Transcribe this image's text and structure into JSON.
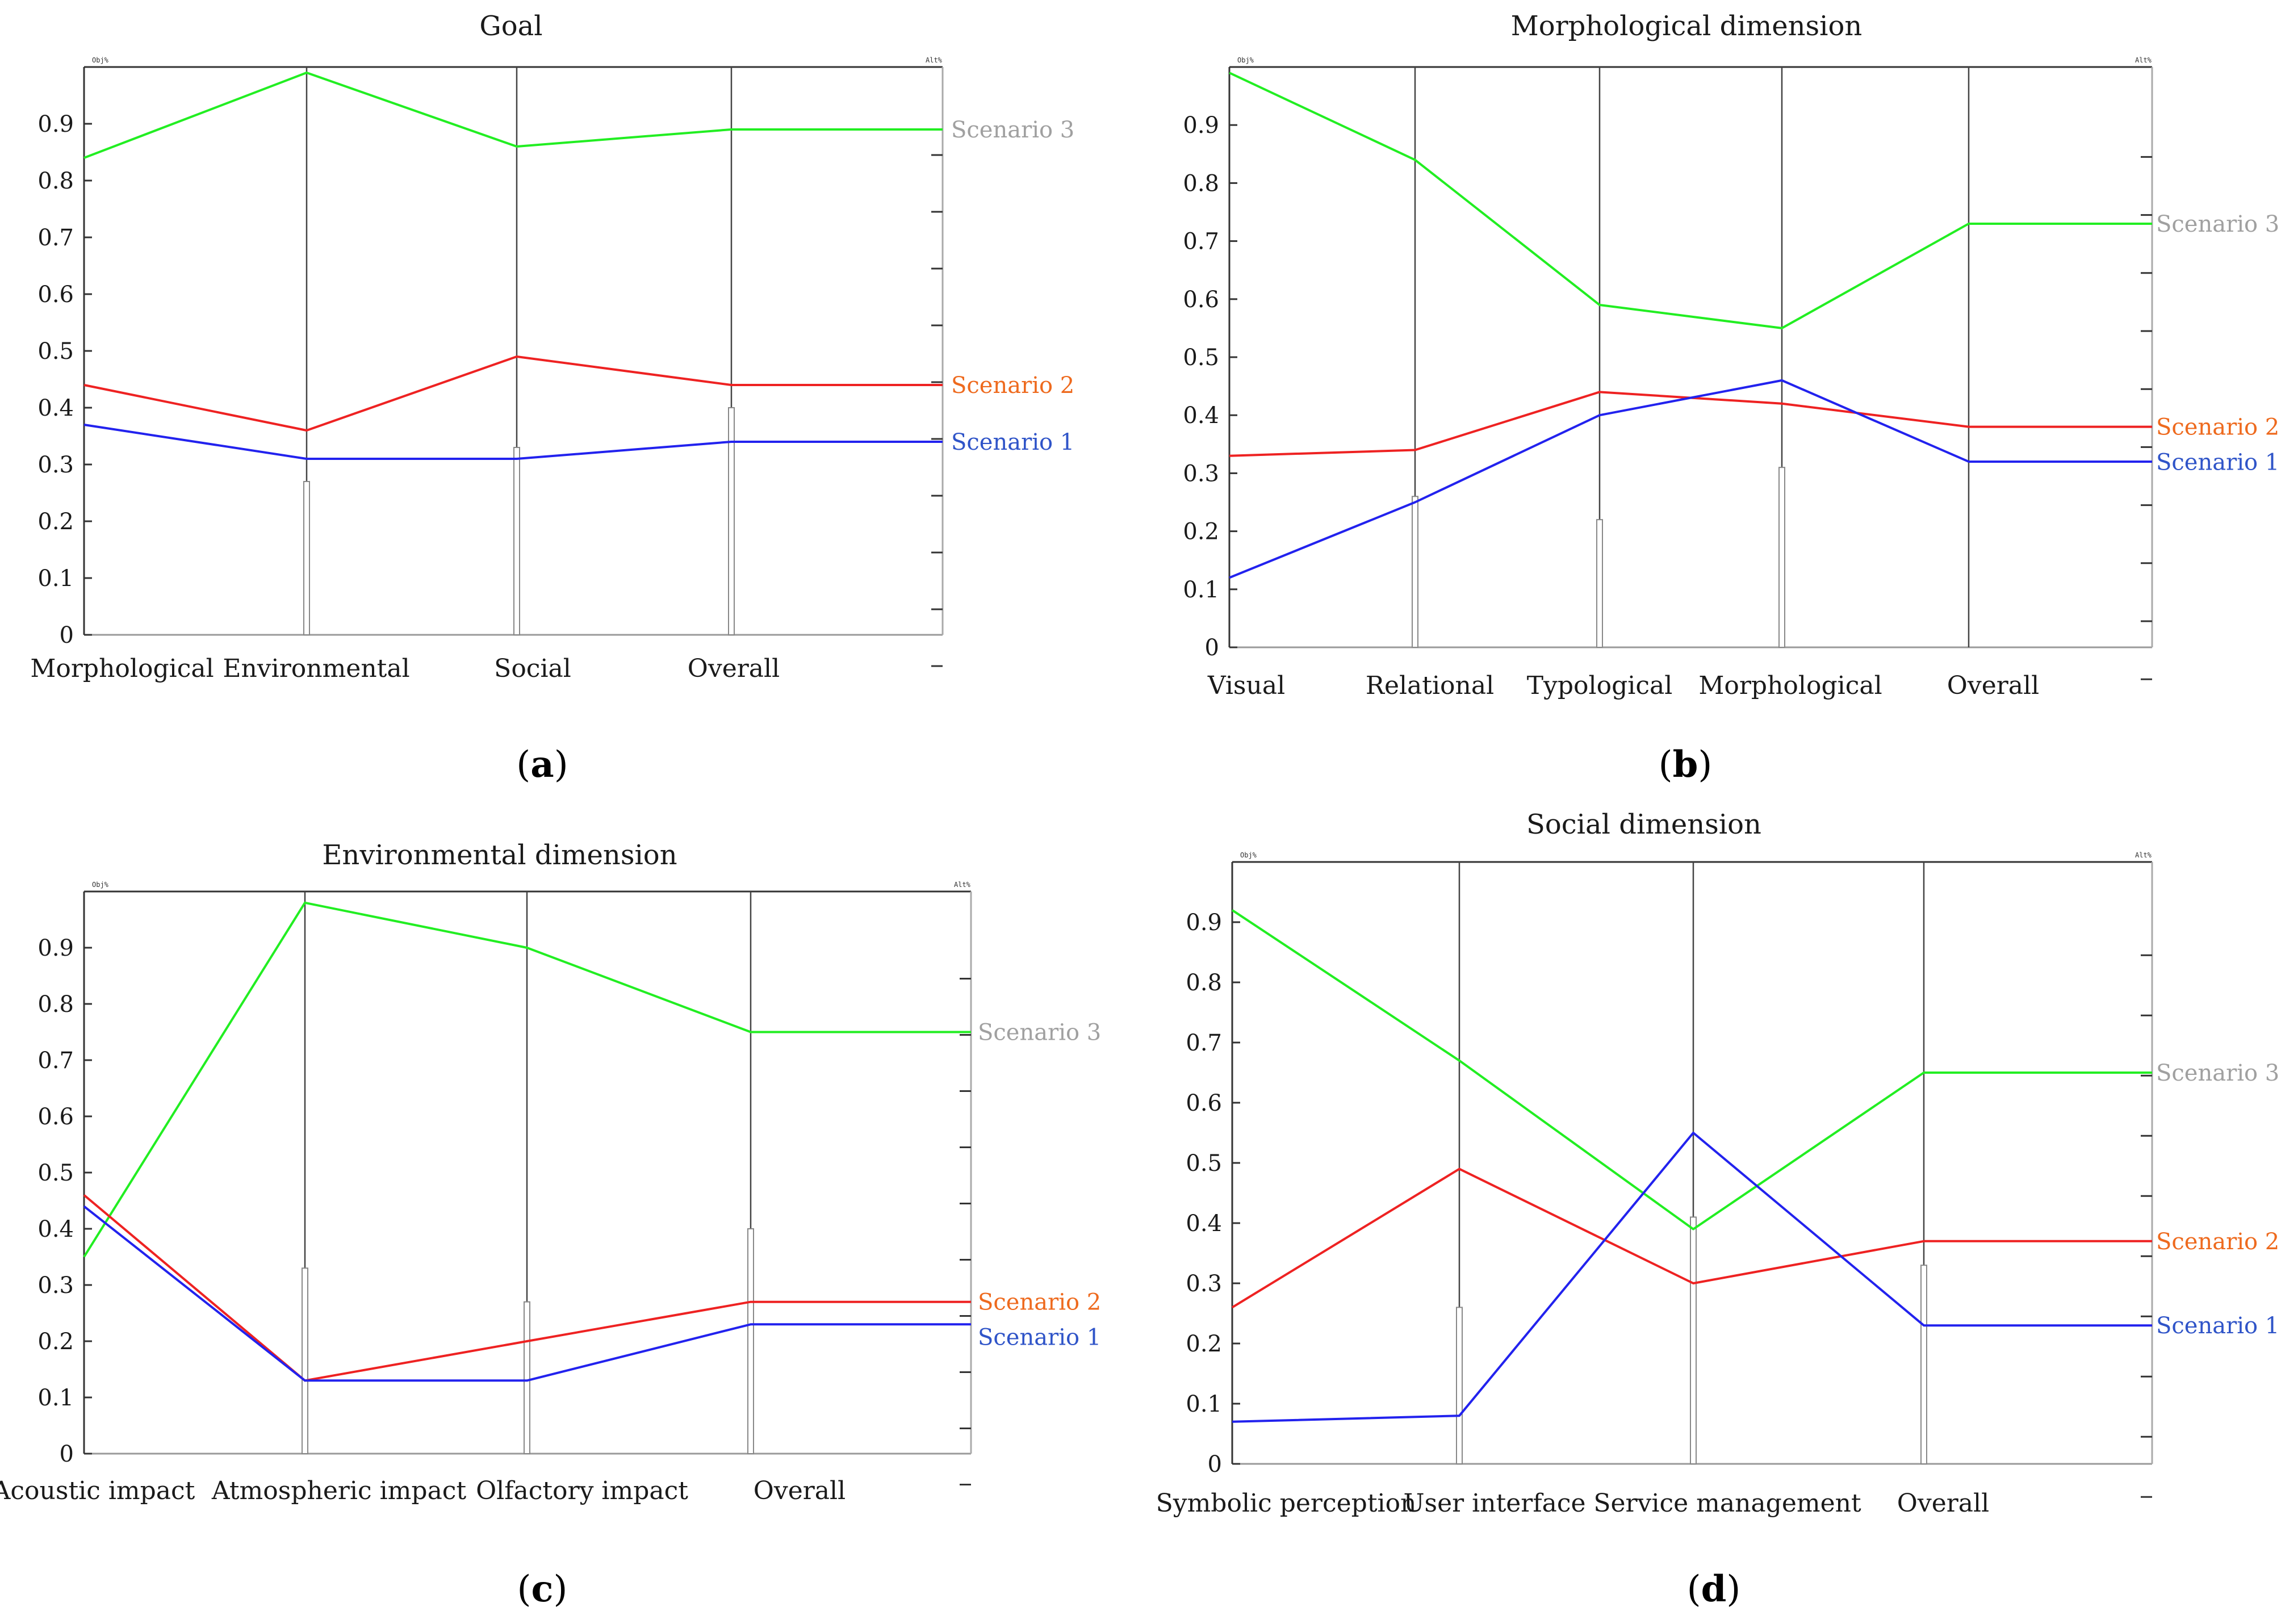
{
  "chart_data": [
    {
      "type": "line",
      "title": "Goal",
      "panel_label": "(a)",
      "corner_left": "Obj%",
      "corner_right": "Alt%",
      "categories": [
        "Morphological",
        "Environmental",
        "Social",
        "Overall"
      ],
      "ylim": [
        0,
        1
      ],
      "yticks": [
        "0",
        "0.1",
        "0.2",
        "0.3",
        "0.4",
        "0.5",
        "0.6",
        "0.7",
        "0.8",
        "0.9"
      ],
      "weights": [
        0.27,
        0.33,
        0.4
      ],
      "series": [
        {
          "name": "Scenario 3",
          "color": "#22ee22",
          "label_color": "#a0a0a0",
          "values": [
            0.84,
            0.99,
            0.86,
            0.89
          ]
        },
        {
          "name": "Scenario 2",
          "color": "#ee2222",
          "label_color": "#ee6a1e",
          "values": [
            0.44,
            0.36,
            0.49,
            0.44
          ]
        },
        {
          "name": "Scenario 1",
          "color": "#2222ee",
          "label_color": "#2f54c8",
          "values": [
            0.37,
            0.31,
            0.31,
            0.34
          ]
        }
      ]
    },
    {
      "type": "line",
      "title": "Morphological dimension",
      "panel_label": "(b)",
      "corner_left": "Obj%",
      "corner_right": "Alt%",
      "categories": [
        "Visual",
        "Relational",
        "Typological",
        "Morphological",
        "Overall"
      ],
      "ylim": [
        0,
        1
      ],
      "yticks": [
        "0",
        "0.1",
        "0.2",
        "0.3",
        "0.4",
        "0.5",
        "0.6",
        "0.7",
        "0.8",
        "0.9"
      ],
      "weights": [
        0.26,
        0.22,
        0.31
      ],
      "series": [
        {
          "name": "Scenario 3",
          "color": "#22ee22",
          "label_color": "#a0a0a0",
          "values": [
            0.99,
            0.84,
            0.59,
            0.55,
            0.73
          ]
        },
        {
          "name": "Scenario 2",
          "color": "#ee2222",
          "label_color": "#ee6a1e",
          "values": [
            0.33,
            0.34,
            0.44,
            0.42,
            0.38
          ]
        },
        {
          "name": "Scenario 1",
          "color": "#2222ee",
          "label_color": "#2f54c8",
          "values": [
            0.12,
            0.25,
            0.4,
            0.46,
            0.32
          ]
        }
      ]
    },
    {
      "type": "line",
      "title": "Environmental dimension",
      "panel_label": "(c)",
      "corner_left": "Obj%",
      "corner_right": "Alt%",
      "categories": [
        "Acoustic impact",
        "Atmospheric impact",
        "Olfactory impact",
        "Overall"
      ],
      "ylim": [
        0,
        1
      ],
      "yticks": [
        "0",
        "0.1",
        "0.2",
        "0.3",
        "0.4",
        "0.5",
        "0.6",
        "0.7",
        "0.8",
        "0.9"
      ],
      "weights": [
        0.33,
        0.27,
        0.4
      ],
      "series": [
        {
          "name": "Scenario 3",
          "color": "#22ee22",
          "label_color": "#a0a0a0",
          "values": [
            0.35,
            0.98,
            0.9,
            0.75
          ]
        },
        {
          "name": "Scenario 2",
          "color": "#ee2222",
          "label_color": "#ee6a1e",
          "values": [
            0.46,
            0.13,
            0.2,
            0.27
          ]
        },
        {
          "name": "Scenario 1",
          "color": "#2222ee",
          "label_color": "#2f54c8",
          "values": [
            0.44,
            0.13,
            0.13,
            0.23
          ]
        }
      ]
    },
    {
      "type": "line",
      "title": "Social dimension",
      "panel_label": "(d)",
      "corner_left": "Obj%",
      "corner_right": "Alt%",
      "categories": [
        "Symbolic perception",
        "User interface",
        "Service management",
        "Overall"
      ],
      "ylim": [
        0,
        1
      ],
      "yticks": [
        "0",
        "0.1",
        "0.2",
        "0.3",
        "0.4",
        "0.5",
        "0.6",
        "0.7",
        "0.8",
        "0.9"
      ],
      "weights": [
        0.26,
        0.41,
        0.33
      ],
      "series": [
        {
          "name": "Scenario 3",
          "color": "#22ee22",
          "label_color": "#a0a0a0",
          "values": [
            0.92,
            0.67,
            0.39,
            0.65
          ]
        },
        {
          "name": "Scenario 2",
          "color": "#ee2222",
          "label_color": "#ee6a1e",
          "values": [
            0.26,
            0.49,
            0.3,
            0.37
          ]
        },
        {
          "name": "Scenario 1",
          "color": "#2222ee",
          "label_color": "#2f54c8",
          "values": [
            0.07,
            0.08,
            0.55,
            0.23
          ]
        }
      ]
    }
  ]
}
